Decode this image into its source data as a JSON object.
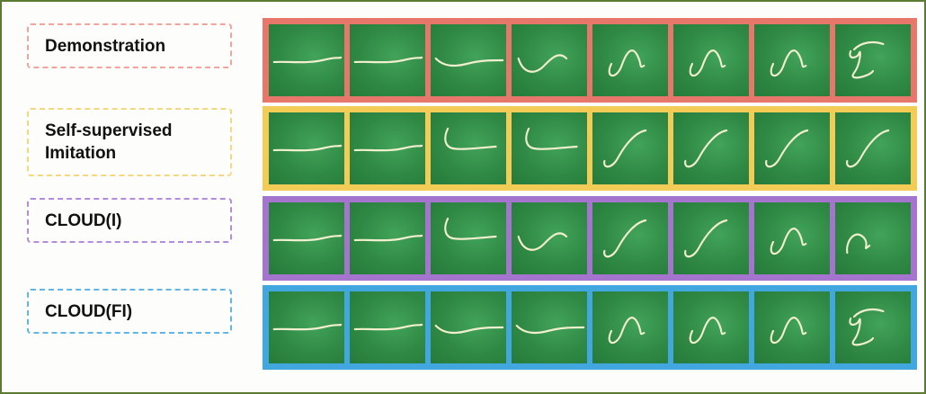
{
  "colors": {
    "frame": "#5b7a34",
    "cable": "#f1efd0",
    "tile_green": "#2f8944"
  },
  "rows": [
    {
      "label": "Demonstration",
      "color": "#e8776b",
      "dash_color": "#f0a49b",
      "frames": [
        "straight",
        "straight",
        "wave",
        "s-curve",
        "loop",
        "loop",
        "loop",
        "coil"
      ]
    },
    {
      "label": "Self-supervised\nImitation",
      "color": "#f2cc57",
      "dash_color": "#f4d77e",
      "frames": [
        "straight",
        "straight",
        "hook",
        "hook",
        "j-curve",
        "j-curve",
        "j-curve",
        "j-curve"
      ]
    },
    {
      "label": "CLOUD(I)",
      "color": "#a474cf",
      "dash_color": "#b58cda",
      "frames": [
        "straight",
        "straight",
        "hook",
        "s-curve",
        "j-curve",
        "j-curve",
        "loop",
        "loop-small"
      ]
    },
    {
      "label": "CLOUD(FI)",
      "color": "#42a7de",
      "dash_color": "#62b6e4",
      "frames": [
        "straight",
        "straight",
        "wave",
        "wave",
        "loop",
        "loop",
        "loop",
        "coil"
      ]
    }
  ]
}
